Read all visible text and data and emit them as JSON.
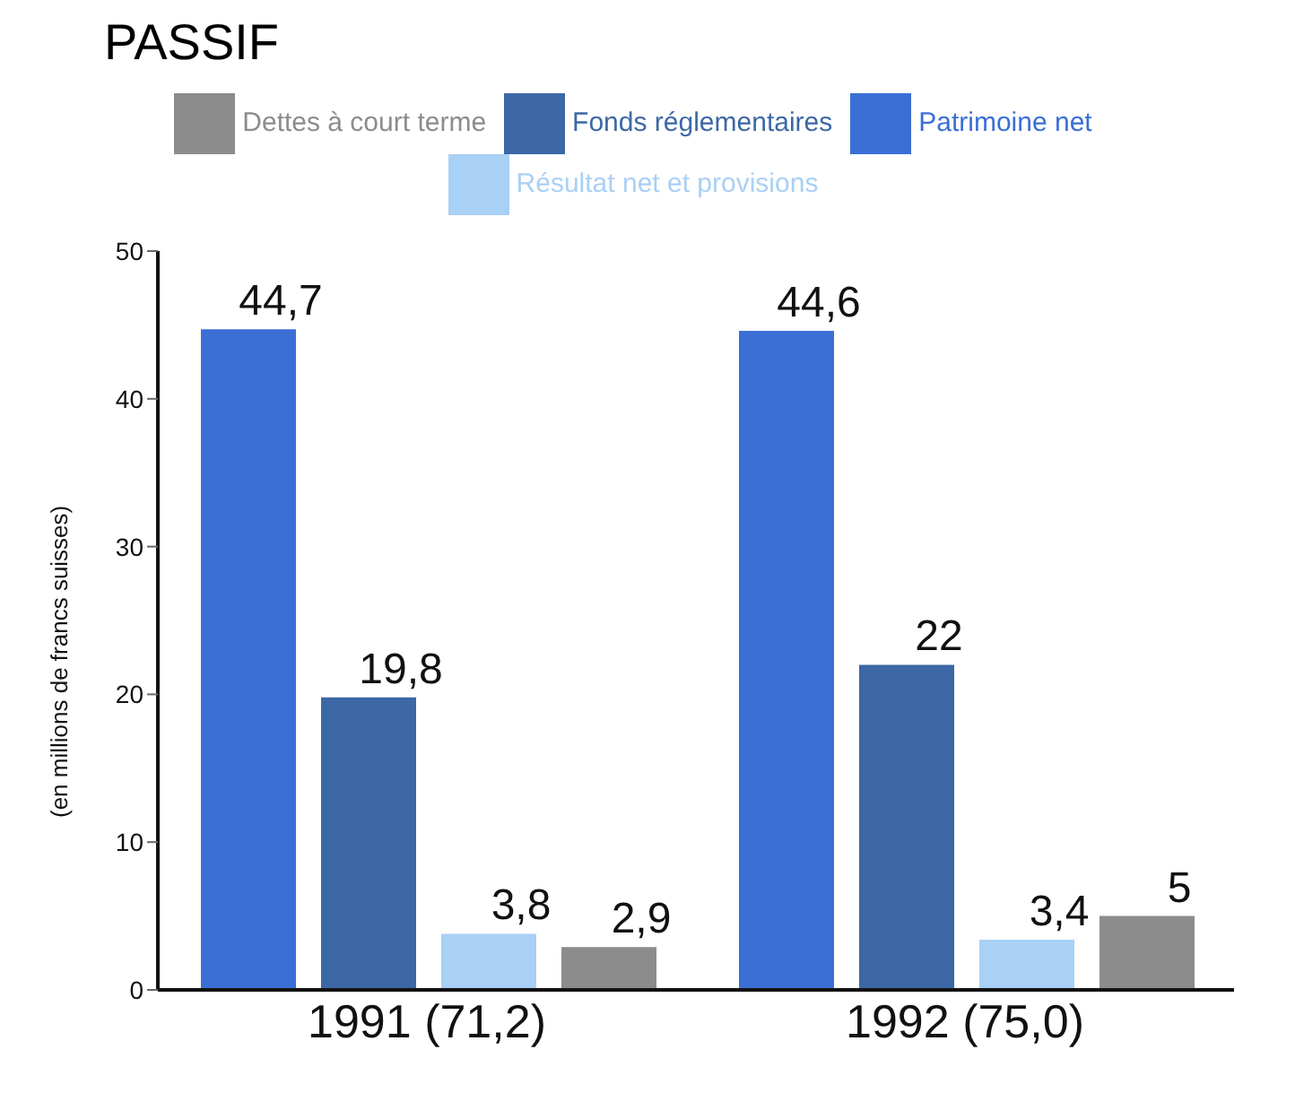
{
  "chart_data": {
    "type": "bar",
    "title": "PASSIF",
    "ylabel": "(en millions de francs suisses)",
    "categories": [
      "1991 (71,2)",
      "1992 (75,0)"
    ],
    "series": [
      {
        "name": "Patrimoine net",
        "color": "#3b6fd6",
        "values": [
          44.7,
          44.6
        ],
        "value_labels": [
          "44,7",
          "44,6"
        ]
      },
      {
        "name": "Fonds réglementaires",
        "color": "#3d68a6",
        "values": [
          19.8,
          22
        ],
        "value_labels": [
          "19,8",
          "22"
        ]
      },
      {
        "name": "Résultat net et provisions",
        "color": "#a9d0f5",
        "values": [
          3.8,
          3.4
        ],
        "value_labels": [
          "3,8",
          "3,4"
        ]
      },
      {
        "name": "Dettes à court terme",
        "color": "#8c8c8c",
        "values": [
          2.9,
          5
        ],
        "value_labels": [
          "2,9",
          "5"
        ]
      }
    ],
    "ylim": [
      0,
      50
    ],
    "yticks": [
      0,
      10,
      20,
      30,
      40,
      50
    ],
    "grid": false,
    "legend": "top"
  }
}
